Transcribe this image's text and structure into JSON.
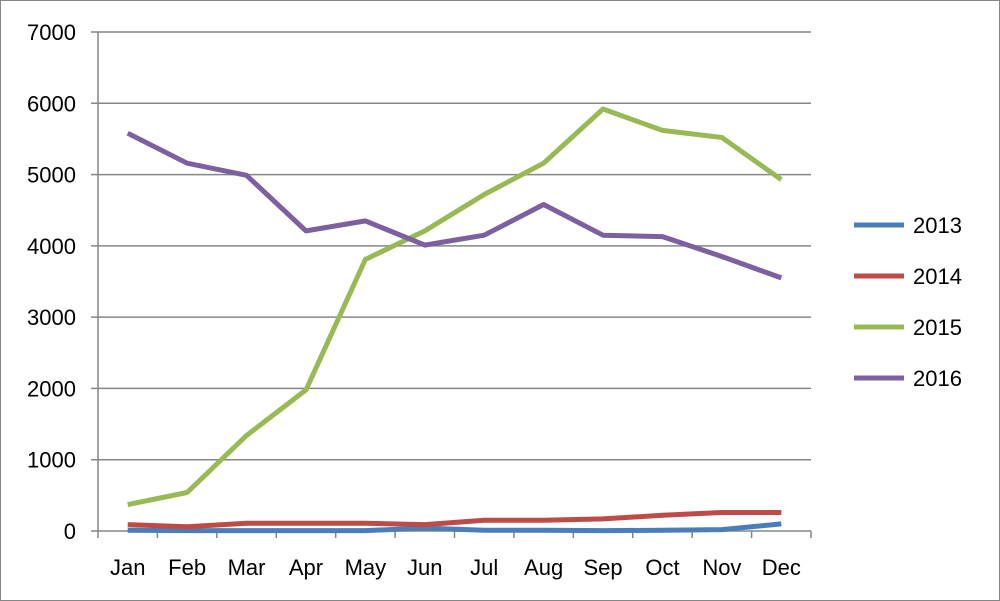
{
  "chart_data": {
    "type": "line",
    "categories": [
      "Jan",
      "Feb",
      "Mar",
      "Apr",
      "May",
      "Jun",
      "Jul",
      "Aug",
      "Sep",
      "Oct",
      "Nov",
      "Dec"
    ],
    "ylim": [
      0,
      7000
    ],
    "yticks": [
      0,
      1000,
      2000,
      3000,
      4000,
      5000,
      6000,
      7000
    ],
    "grid": true,
    "legend": "right",
    "series": [
      {
        "name": "2013",
        "color": "#4A7EBB",
        "values": [
          10,
          5,
          5,
          5,
          5,
          40,
          10,
          10,
          5,
          10,
          20,
          100
        ]
      },
      {
        "name": "2014",
        "color": "#BE4B48",
        "values": [
          90,
          60,
          110,
          110,
          110,
          90,
          150,
          150,
          170,
          220,
          260,
          260
        ]
      },
      {
        "name": "2015",
        "color": "#98B954",
        "values": [
          370,
          540,
          1340,
          1980,
          3810,
          4210,
          4720,
          5160,
          5920,
          5620,
          5520,
          4930
        ]
      },
      {
        "name": "2016",
        "color": "#7D60A0",
        "values": [
          5580,
          5160,
          4990,
          4210,
          4350,
          4010,
          4150,
          4580,
          4150,
          4130,
          3850,
          3550
        ]
      }
    ]
  }
}
